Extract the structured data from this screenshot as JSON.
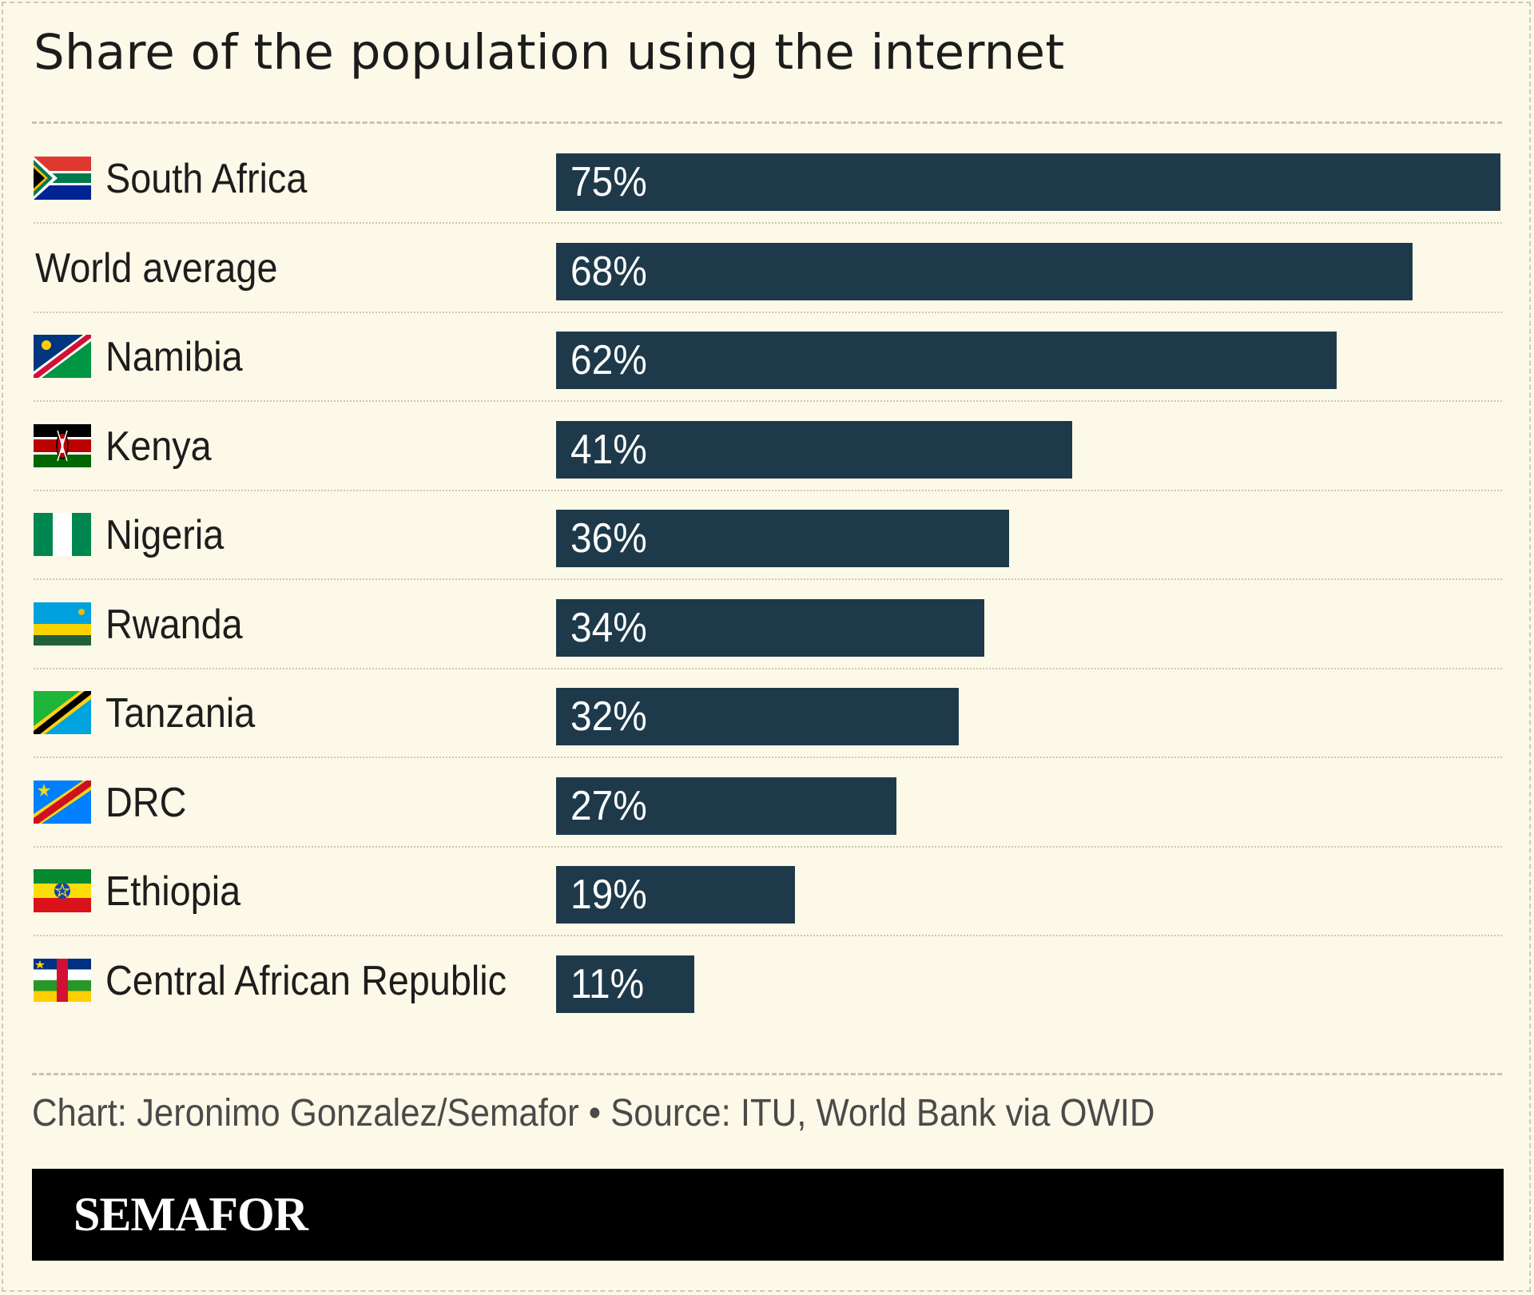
{
  "chart_title": "Share of the population using the internet",
  "source_line": "Chart: Jeronimo Gonzalez/Semafor • Source: ITU, World Bank via OWID",
  "brand": "SEMAFOR",
  "colors": {
    "bar": "#1e3a4a",
    "background": "#fcf9e8",
    "brand_bar": "#000000"
  },
  "chart_data": {
    "type": "bar",
    "orientation": "horizontal",
    "title": "Share of the population using the internet",
    "xlabel": "",
    "ylabel": "",
    "xlim": [
      0,
      75
    ],
    "unit": "%",
    "categories": [
      "South Africa",
      "World average",
      "Namibia",
      "Kenya",
      "Nigeria",
      "Rwanda",
      "Tanzania",
      "DRC",
      "Ethiopia",
      "Central African Republic"
    ],
    "values": [
      75,
      68,
      62,
      41,
      36,
      34,
      32,
      27,
      19,
      11
    ],
    "value_labels": [
      "75%",
      "68%",
      "62%",
      "41%",
      "36%",
      "34%",
      "32%",
      "27%",
      "19%",
      "11%"
    ],
    "flags": [
      "south-africa-flag",
      "",
      "namibia-flag",
      "kenya-flag",
      "nigeria-flag",
      "rwanda-flag",
      "tanzania-flag",
      "drc-flag",
      "ethiopia-flag",
      "central-african-republic-flag"
    ],
    "grid": false,
    "legend": "none"
  }
}
